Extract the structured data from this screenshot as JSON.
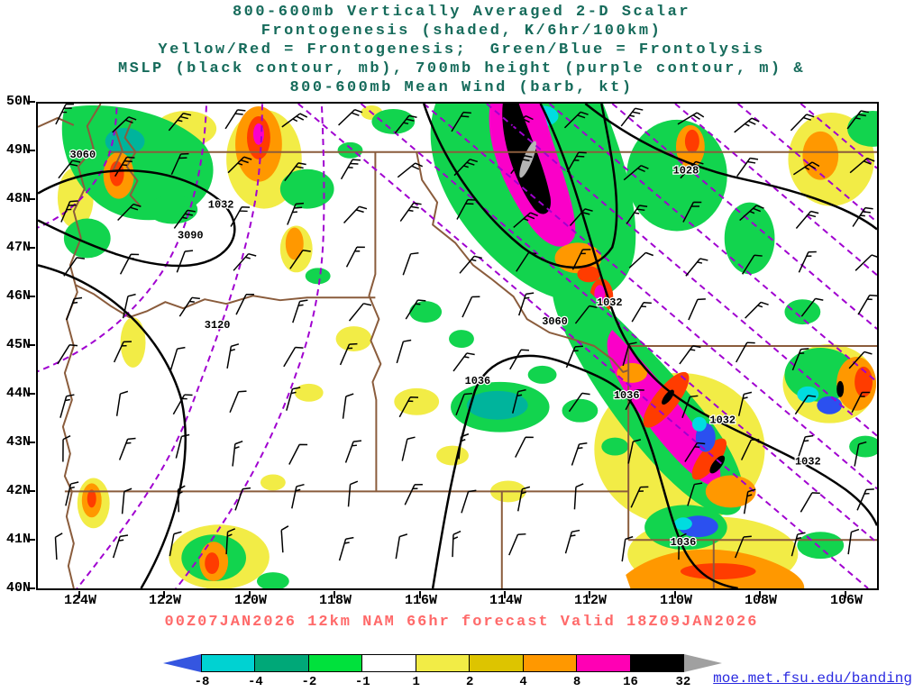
{
  "title": {
    "lines": [
      "800-600mb Vertically Averaged 2-D Scalar",
      "Frontogenesis (shaded, K/6hr/100km)",
      "Yellow/Red = Frontogenesis;  Green/Blue = Frontolysis",
      "MSLP (black contour, mb), 700mb height (purple contour, m) &",
      "800-600mb Mean Wind (barb, kt)"
    ]
  },
  "axes": {
    "lat": [
      "50N",
      "49N",
      "48N",
      "47N",
      "46N",
      "45N",
      "44N",
      "43N",
      "42N",
      "41N",
      "40N"
    ],
    "lon": [
      "124W",
      "122W",
      "120W",
      "118W",
      "116W",
      "114W",
      "112W",
      "110W",
      "108W",
      "106W"
    ]
  },
  "map": {
    "contour_labels": [
      {
        "kind": "height700",
        "value": "3060"
      },
      {
        "kind": "mslp",
        "value": "1032"
      },
      {
        "kind": "height700",
        "value": "3090"
      },
      {
        "kind": "mslp",
        "value": "1028"
      },
      {
        "kind": "height700",
        "value": "3120"
      },
      {
        "kind": "mslp",
        "value": "1032"
      },
      {
        "kind": "height700",
        "value": "3060"
      },
      {
        "kind": "mslp",
        "value": "1036"
      },
      {
        "kind": "mslp",
        "value": "1036"
      },
      {
        "kind": "mslp",
        "value": "1032"
      },
      {
        "kind": "mslp",
        "value": "1032"
      },
      {
        "kind": "mslp",
        "value": "1036"
      }
    ]
  },
  "footer": {
    "text": "00Z07JAN2026 12km NAM 66hr forecast Valid 18Z09JAN2026"
  },
  "colorbar": {
    "ticks": [
      "-8",
      "-4",
      "-2",
      "-1",
      "1",
      "2",
      "4",
      "8",
      "16",
      "32"
    ],
    "segment_colors": [
      "#00d2d2",
      "#00a878",
      "#00e13c",
      "#ffffff",
      "#f2ec46",
      "#ddc400",
      "#ff9800",
      "#ff00b4",
      "#000000"
    ],
    "left_arrow_color": "#3556e0",
    "right_arrow_color": "#a0a0a0"
  },
  "credit": {
    "text": "moe.met.fsu.edu/banding"
  },
  "palette": {
    "title_color": "#166b5b",
    "footer_color": "#ff6a6a",
    "credit_color": "#2a2ae0",
    "state_border_color": "#8a5c3c",
    "mslp_contour_color": "#000000",
    "height_contour_color": "#a000d0",
    "shading": {
      "green": "#12d44e",
      "teal": "#00b49c",
      "cyan": "#00dce0",
      "blue": "#2b50f0",
      "yellow": "#f2ec46",
      "orange": "#ff9800",
      "red": "#ff3c00",
      "magenta": "#fa00c8",
      "black": "#000000",
      "gray": "#b4b4b4"
    }
  }
}
